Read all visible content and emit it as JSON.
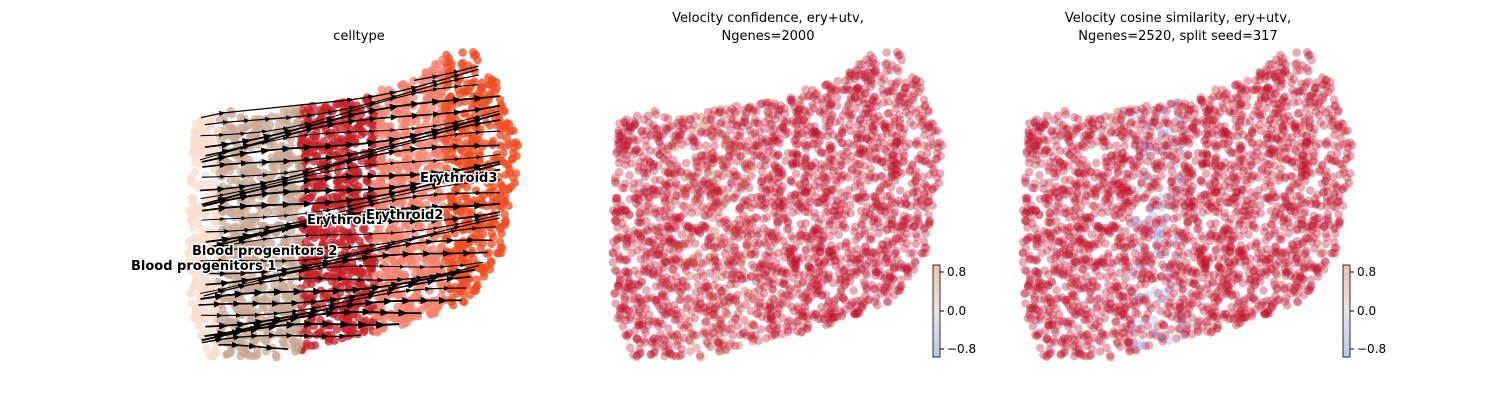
{
  "chart_data": [
    {
      "type": "scatter",
      "title": "celltype",
      "overlay": "velocity-stream",
      "legend": "on data",
      "categories": [
        "Blood progenitors 1",
        "Blood progenitors 2",
        "Erythroid1",
        "Erythroid2",
        "Erythroid3"
      ],
      "category_labels": [
        "Blood progenitors 1",
        "Blood progenitors 2",
        "Erythroid1",
        "Erythroid2",
        "Erythroid3"
      ],
      "colors": [
        "#f9decf",
        "#c9a997",
        "#c72228",
        "#f4826f",
        "#ef4e22"
      ],
      "axes": "off"
    },
    {
      "type": "scatter",
      "title": "Velocity confidence, ery+utv,",
      "title_line2": "Ngenes=2000",
      "colormap": "coolwarm",
      "colorbar": {
        "ticks": [
          "0.8",
          "0.0",
          "−0.8"
        ],
        "tick_values": [
          0.8,
          0.0,
          -0.8
        ]
      },
      "dominant_color": "#c0102a",
      "axes": "off"
    },
    {
      "type": "scatter",
      "title": "Velocity cosine similarity, ery+utv,",
      "title_line2": "Ngenes=2520, split seed=317",
      "colormap": "coolwarm",
      "colorbar": {
        "ticks": [
          "0.8",
          "0.0",
          "−0.8"
        ],
        "tick_values": [
          0.8,
          0.0,
          -0.8
        ]
      },
      "dominant_color": "#c0102a",
      "axes": "off"
    }
  ]
}
